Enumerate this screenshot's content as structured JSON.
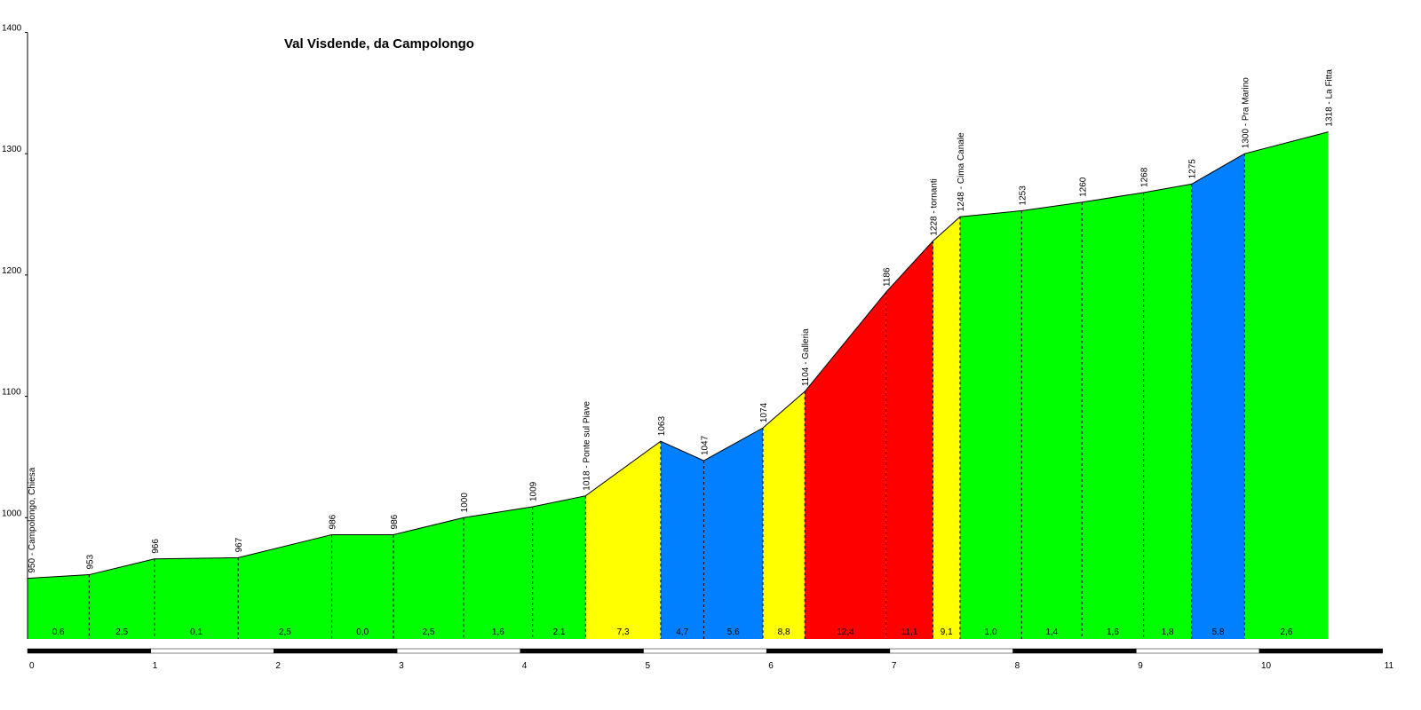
{
  "chart_data": {
    "type": "area",
    "title": "Val Visdende, da Campolongo",
    "xlabel": "",
    "ylabel": "",
    "xlim": [
      0,
      11
    ],
    "ylim": [
      900,
      1400
    ],
    "x_ticks": [
      "0",
      "1",
      "2",
      "3",
      "4",
      "5",
      "6",
      "7",
      "8",
      "9",
      "10",
      "11"
    ],
    "y_ticks": [
      "1000",
      "1100",
      "1200",
      "1300",
      "1400"
    ],
    "grid": false,
    "legend": "none",
    "points": [
      {
        "x": 0.0,
        "y": 950,
        "label": "950 - Campolongo, Chiesa"
      },
      {
        "x": 0.5,
        "y": 953,
        "label": "953"
      },
      {
        "x": 1.03,
        "y": 966,
        "label": "966"
      },
      {
        "x": 1.71,
        "y": 967,
        "label": "967"
      },
      {
        "x": 2.47,
        "y": 986,
        "label": "986"
      },
      {
        "x": 2.97,
        "y": 986,
        "label": "986"
      },
      {
        "x": 3.54,
        "y": 1000,
        "label": "1000"
      },
      {
        "x": 4.1,
        "y": 1009,
        "label": "1009"
      },
      {
        "x": 4.53,
        "y": 1018,
        "label": "1018 - Ponte sul Piave"
      },
      {
        "x": 5.14,
        "y": 1063,
        "label": "1063"
      },
      {
        "x": 5.49,
        "y": 1047,
        "label": "1047"
      },
      {
        "x": 5.97,
        "y": 1074,
        "label": "1074"
      },
      {
        "x": 6.31,
        "y": 1104,
        "label": "1104 - Galleria"
      },
      {
        "x": 6.97,
        "y": 1186,
        "label": "1186"
      },
      {
        "x": 7.35,
        "y": 1228,
        "label": "1228 - tornanti"
      },
      {
        "x": 7.57,
        "y": 1248,
        "label": "1248 - Cima Canale"
      },
      {
        "x": 8.07,
        "y": 1253,
        "label": "1253"
      },
      {
        "x": 8.56,
        "y": 1260,
        "label": "1260"
      },
      {
        "x": 9.06,
        "y": 1268,
        "label": "1268"
      },
      {
        "x": 9.45,
        "y": 1275,
        "label": "1275"
      },
      {
        "x": 9.88,
        "y": 1300,
        "label": "1300 - Pra Marino"
      },
      {
        "x": 10.56,
        "y": 1318,
        "label": "1318 - La Fitta"
      }
    ],
    "segments": [
      {
        "gradient": "0,6",
        "color": "#00ff00"
      },
      {
        "gradient": "2,5",
        "color": "#00ff00"
      },
      {
        "gradient": "0,1",
        "color": "#00ff00"
      },
      {
        "gradient": "2,5",
        "color": "#00ff00"
      },
      {
        "gradient": "0,0",
        "color": "#00ff00"
      },
      {
        "gradient": "2,5",
        "color": "#00ff00"
      },
      {
        "gradient": "1,6",
        "color": "#00ff00"
      },
      {
        "gradient": "2,1",
        "color": "#00ff00"
      },
      {
        "gradient": "7,3",
        "color": "#ffff00"
      },
      {
        "gradient": "4,7",
        "color": "#0080ff"
      },
      {
        "gradient": "5,6",
        "color": "#0080ff"
      },
      {
        "gradient": "8,8",
        "color": "#ffff00"
      },
      {
        "gradient": "12,4",
        "color": "#ff0000"
      },
      {
        "gradient": "11,1",
        "color": "#ff0000"
      },
      {
        "gradient": "9,1",
        "color": "#ffff00"
      },
      {
        "gradient": "1,0",
        "color": "#00ff00"
      },
      {
        "gradient": "1,4",
        "color": "#00ff00"
      },
      {
        "gradient": "1,6",
        "color": "#00ff00"
      },
      {
        "gradient": "1,8",
        "color": "#00ff00"
      },
      {
        "gradient": "5,8",
        "color": "#0080ff"
      },
      {
        "gradient": "2,6",
        "color": "#00ff00"
      }
    ]
  }
}
